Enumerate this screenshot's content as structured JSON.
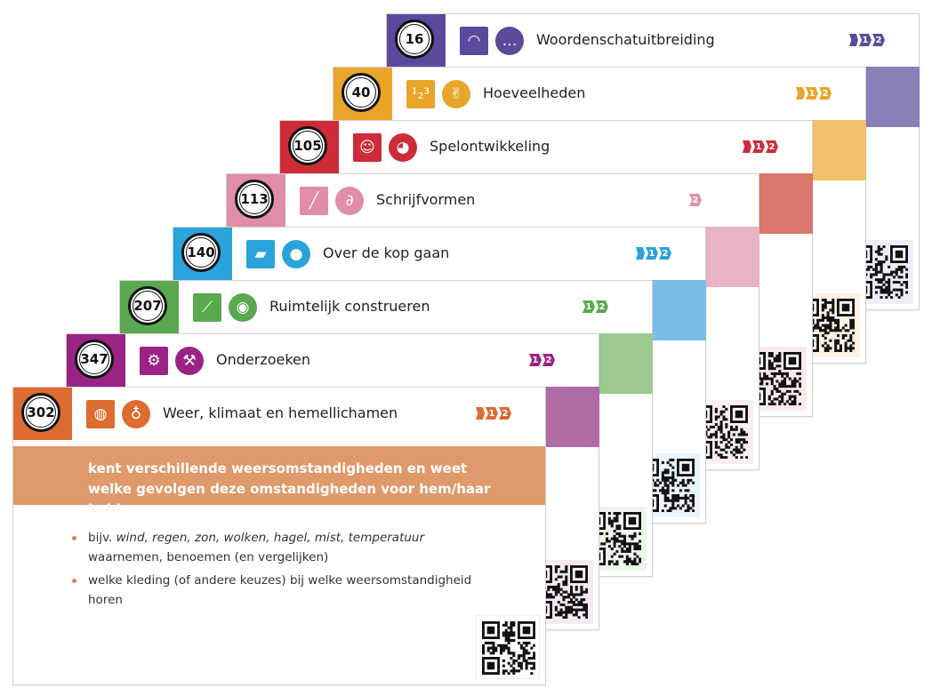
{
  "cards": [
    {
      "number": "16",
      "title": "Woordenschatuitbreiding",
      "color": "#5b4a9b",
      "tint": "#8a7fb7",
      "qr_bg": "#efedf7",
      "icon1": "lips-icon",
      "icon2": "speech-bubble-icon",
      "icon1_glyph": "◠",
      "icon2_glyph": "…",
      "levels": [
        "",
        "1",
        "2"
      ]
    },
    {
      "number": "40",
      "title": "Hoeveelheden",
      "color": "#e9a529",
      "tint": "#f0c06a",
      "qr_bg": "#fbf2e4",
      "icon1": "numbers-123-icon",
      "icon2": "counting-hand-icon",
      "icon1_glyph": "¹₂³",
      "icon2_glyph": "✌",
      "levels": [
        "",
        "1",
        "2"
      ]
    },
    {
      "number": "105",
      "title": "Spelontwikkeling",
      "color": "#cf2a38",
      "tint": "#d9776c",
      "qr_bg": "#fbeaea",
      "icon1": "smiley-face-icon",
      "icon2": "puppet-icon",
      "icon1_glyph": "☺",
      "icon2_glyph": "◕",
      "levels": [
        "",
        "1",
        "2"
      ]
    },
    {
      "number": "113",
      "title": "Schrijfvormen",
      "color": "#df8ea6",
      "tint": "#e8b4c3",
      "qr_bg": "#fbeef2",
      "icon1": "pencil-icon",
      "icon2": "scribble-icon",
      "icon1_glyph": "╱",
      "icon2_glyph": "∂",
      "levels": [
        "2"
      ]
    },
    {
      "number": "140",
      "title": "Over de kop gaan",
      "color": "#2aa3db",
      "tint": "#7cbde8",
      "qr_bg": "#eaf4fb",
      "icon1": "gym-mat-icon",
      "icon2": "ball-icon",
      "icon1_glyph": "▰",
      "icon2_glyph": "●",
      "levels": [
        "",
        "1",
        "2"
      ]
    },
    {
      "number": "207",
      "title": "Ruimtelijk construeren",
      "color": "#5aa84f",
      "tint": "#9cc98f",
      "qr_bg": "#edf6ea",
      "icon1": "brush-icon",
      "icon2": "palette-icon",
      "icon1_glyph": "⟋",
      "icon2_glyph": "◉",
      "levels": [
        "1",
        "2"
      ]
    },
    {
      "number": "347",
      "title": "Onderzoeken",
      "color": "#9b2385",
      "tint": "#b06aa6",
      "qr_bg": "#f5eaf3",
      "icon1": "gears-icon",
      "icon2": "pickaxe-icon",
      "icon1_glyph": "⚙",
      "icon2_glyph": "⚒",
      "levels": [
        "1",
        "2"
      ]
    },
    {
      "number": "302",
      "title": "Weer, klimaat en hemellichamen",
      "color": "#dd6c32",
      "tint": "#e0996a",
      "qr_bg": "#ffffff",
      "icon1": "globe-icon",
      "icon2": "thermometer-icon",
      "icon1_glyph": "◍",
      "icon2_glyph": "♁",
      "levels": [
        "",
        "1",
        "2"
      ]
    }
  ],
  "front": {
    "description": "kent verschillende weersomstandigheden en weet welke gevolgen deze omstandigheden voor hem/haar hebben.",
    "bullets": [
      {
        "prefix": "bijv. ",
        "italic": "wind, regen, zon, wolken, hagel, mist, temperatuur",
        "suffix": " waarnemen, benoemen (en vergelijken)"
      },
      {
        "prefix": "welke kleding (of andere keuzes) bij welke weersomstandigheid horen",
        "italic": "",
        "suffix": ""
      }
    ]
  }
}
